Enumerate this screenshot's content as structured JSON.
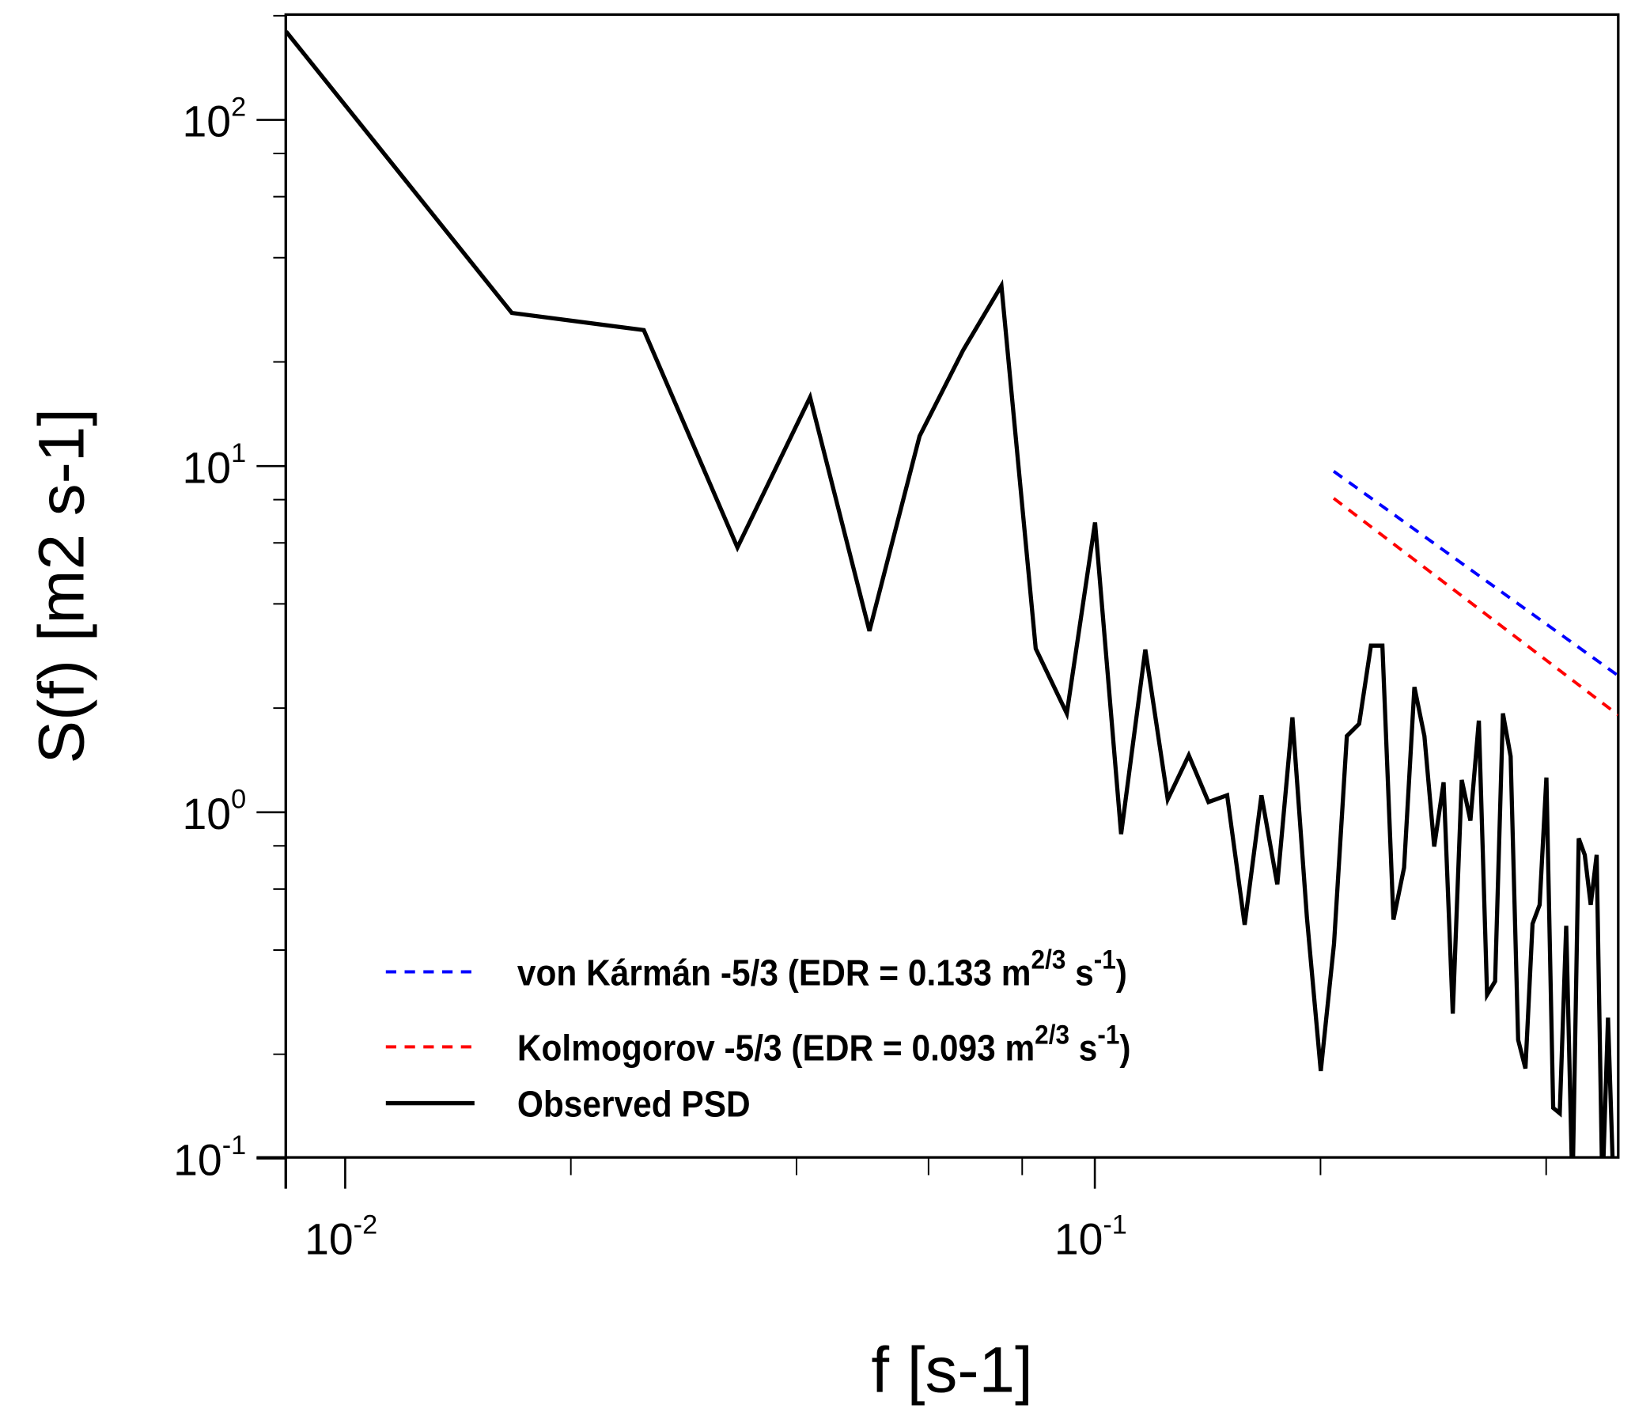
{
  "chart_data": {
    "type": "line",
    "title": "",
    "xlabel": "f [s-1]",
    "ylabel": "S(f) [m2 s-1]",
    "xscale": "log",
    "yscale": "log",
    "xlim": [
      0.0077,
      0.5
    ],
    "ylim": [
      0.1,
      210
    ],
    "x_ticks": [
      {
        "base": "10",
        "exp": "-2",
        "value": 0.01
      },
      {
        "base": "10",
        "exp": "-1",
        "value": 0.1
      }
    ],
    "y_ticks": [
      {
        "base": "10",
        "exp": "2",
        "value": 100
      },
      {
        "base": "10",
        "exp": "1",
        "value": 10
      },
      {
        "base": "10",
        "exp": "0",
        "value": 1
      },
      {
        "base": "10",
        "exp": "-1",
        "value": 0.1
      }
    ],
    "grid": false,
    "legend_position": "bottom-left",
    "series": [
      {
        "name": "Observed PSD",
        "color": "#000000",
        "style": "solid",
        "x_step": 0.00834,
        "values": [
          180,
          27.7,
          24.7,
          5.82,
          15.8,
          3.34,
          12.2,
          21.6,
          33.2,
          2.97,
          1.93,
          6.87,
          0.865,
          2.95,
          1.09,
          1.46,
          1.07,
          1.12,
          0.473,
          1.12,
          0.619,
          1.88,
          0.497,
          0.179,
          0.417,
          1.66,
          1.8,
          3.03,
          3.03,
          0.49,
          0.692,
          2.3,
          1.66,
          0.796,
          1.22,
          0.262,
          1.24,
          0.946,
          1.84,
          0.297,
          0.325,
          1.93,
          1.45,
          0.22,
          0.182,
          0.476,
          0.54,
          1.26,
          0.14,
          0.135,
          0.47,
          0.08,
          0.841,
          0.753,
          0.54,
          0.753,
          0.08,
          0.255,
          0.08
        ]
      },
      {
        "name": "von Kármán -5/3 (EDR = 0.133 m2/3 s-1)",
        "color": "#0000ff",
        "style": "dashed",
        "x": [
          0.2083,
          0.499
        ],
        "values": [
          9.66,
          2.48
        ]
      },
      {
        "name": "Kolmogorov -5/3 (EDR = 0.093 m2/3 s-1)",
        "color": "#ff0000",
        "style": "dashed",
        "x": [
          0.2083,
          0.499
        ],
        "values": [
          8.07,
          1.91
        ]
      }
    ],
    "legend": [
      {
        "prefix": "von Kármán -5/3 (EDR = 0.133 m",
        "sup": "2/3",
        "mid": " s",
        "sup2": "-1",
        "suffix": ")",
        "color": "#0000ff",
        "style": "dashed"
      },
      {
        "prefix": "Kolmogorov -5/3 (EDR = 0.093 m",
        "sup": "2/3",
        "mid": " s",
        "sup2": "-1",
        "suffix": ")",
        "color": "#ff0000",
        "style": "dashed"
      },
      {
        "prefix": "Observed PSD",
        "sup": "",
        "mid": "",
        "sup2": "",
        "suffix": "",
        "color": "#000000",
        "style": "solid"
      }
    ],
    "axis_labels": {
      "x": {
        "italic": "f",
        "rest": "[s",
        "sup": "-1",
        "close": "]"
      },
      "y": {
        "pre": "S(",
        "italic": "f",
        "post": ")",
        "rest": "[m",
        "sup": "2",
        "mid": " s",
        "sup2": "-1",
        "close": "]"
      }
    }
  }
}
